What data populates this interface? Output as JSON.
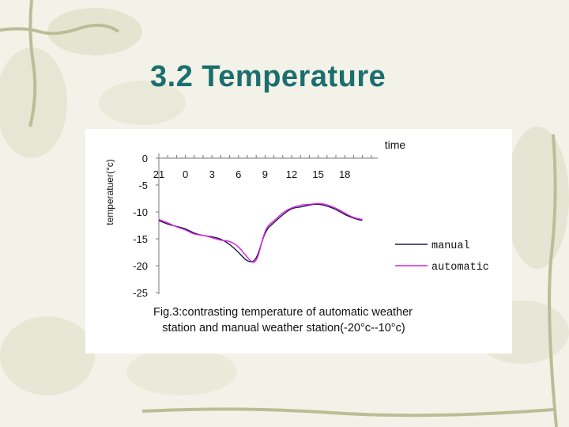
{
  "slide": {
    "title": "3.2 Temperature"
  },
  "caption": {
    "line1": "Fig.3:contrasting temperature of automatic weather",
    "line2": "station and manual weather station(-20°c--10°c)"
  },
  "colors": {
    "title": "#1b6e6e",
    "manual": "#1a1a4e",
    "automatic": "#e020e0"
  },
  "chart_data": {
    "type": "line",
    "title": "",
    "xlabel": "time",
    "ylabel": "temperatuer(°c)",
    "ylim": [
      -25,
      0
    ],
    "yticks": [
      0,
      -5,
      -10,
      -15,
      -20,
      -25
    ],
    "x_categories": [
      "21",
      "0",
      "3",
      "6",
      "9",
      "12",
      "15",
      "18"
    ],
    "x": [
      21,
      22,
      23,
      0,
      1,
      2,
      3,
      4,
      5,
      6,
      7,
      8,
      9,
      10,
      11,
      12,
      13,
      14,
      15,
      16,
      17,
      18,
      19,
      20
    ],
    "legend_position": "right",
    "series": [
      {
        "name": "manual",
        "values": [
          -11.6,
          -12.3,
          -12.7,
          -13.1,
          -14.0,
          -14.4,
          -14.6,
          -15.0,
          -16.0,
          -17.5,
          -19.3,
          -19.2,
          -13.5,
          -12.0,
          -10.5,
          -9.3,
          -9.1,
          -8.7,
          -8.5,
          -8.9,
          -9.5,
          -10.5,
          -11.2,
          -11.6
        ],
        "color": "#1a1a4e"
      },
      {
        "name": "automatic",
        "values": [
          -11.4,
          -12.0,
          -12.8,
          -13.3,
          -14.2,
          -14.3,
          -14.8,
          -15.3,
          -15.4,
          -16.4,
          -18.5,
          -20.0,
          -13.0,
          -11.7,
          -10.1,
          -9.2,
          -8.7,
          -8.6,
          -8.4,
          -8.6,
          -9.3,
          -10.2,
          -11.1,
          -11.4
        ],
        "color": "#e020e0"
      }
    ]
  }
}
